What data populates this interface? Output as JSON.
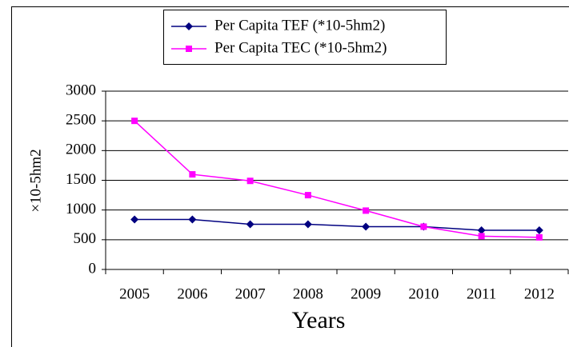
{
  "chart_data": {
    "type": "line",
    "x_label": "Years",
    "y_label": "×10-5hm2",
    "categories": [
      "2005",
      "2006",
      "2007",
      "2008",
      "2009",
      "2010",
      "2011",
      "2012"
    ],
    "series": [
      {
        "name": "Per Capita TEF (*10-5hm2)",
        "color": "#000080",
        "marker": "diamond",
        "values": [
          840,
          840,
          760,
          760,
          720,
          720,
          660,
          660
        ]
      },
      {
        "name": "Per Capita TEC (*10-5hm2)",
        "color": "#ff00ff",
        "marker": "square",
        "values": [
          2500,
          1600,
          1490,
          1250,
          990,
          720,
          560,
          540
        ]
      }
    ],
    "ylim": [
      0,
      3000
    ],
    "yticks": [
      0,
      500,
      1000,
      1500,
      2000,
      2500,
      3000
    ],
    "grid": true,
    "legend": "top"
  }
}
